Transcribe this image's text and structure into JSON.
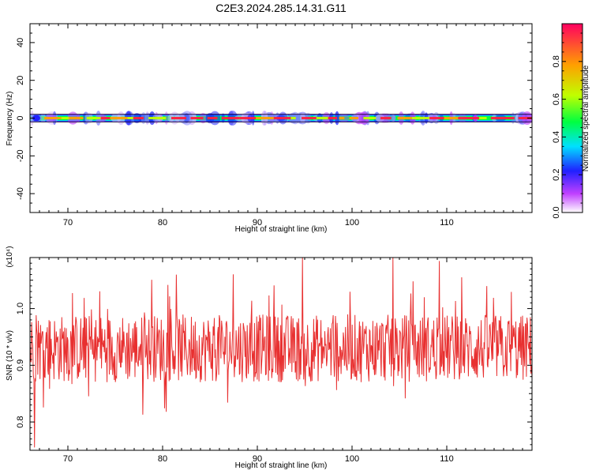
{
  "title": "C2E3.2024.285.14.31.G11",
  "chart_data": [
    {
      "type": "heatmap",
      "xlabel": "Height of straight line (km)",
      "ylabel": "Frequency (Hz)",
      "xlim": [
        66,
        119
      ],
      "ylim": [
        -50,
        50
      ],
      "xticks": [
        70,
        80,
        90,
        100,
        110
      ],
      "yticks": [
        40,
        20,
        0,
        -20,
        -40
      ],
      "colorbar": {
        "label": "Normalized spectral amplitude",
        "range": [
          0,
          1
        ],
        "ticks": [
          "0.0",
          "0.2",
          "0.4",
          "0.6",
          "0.8"
        ],
        "colors": [
          "#ffffff",
          "#c040ff",
          "#2020ff",
          "#00e0ff",
          "#00ff40",
          "#c0ff00",
          "#ffa000",
          "#ff0040"
        ]
      },
      "band_center_hz": 0,
      "band_halfwidth_hz": 2
    },
    {
      "type": "line",
      "xlabel": "Height of straight line (km)",
      "ylabel": "SNR (10 * v/v)",
      "yscale_label": "(x10⁴)",
      "xlim": [
        66,
        119
      ],
      "ylim": [
        0.75,
        1.09
      ],
      "xticks": [
        70,
        80,
        90,
        100,
        110
      ],
      "yticks": [
        1.0,
        0.9,
        0.8
      ],
      "ytick_labels": [
        "1.0",
        "0.9",
        "0.8"
      ],
      "color": "#e83030",
      "n_points": 900,
      "mean": 0.93,
      "min": 0.755,
      "max": 1.09
    }
  ]
}
